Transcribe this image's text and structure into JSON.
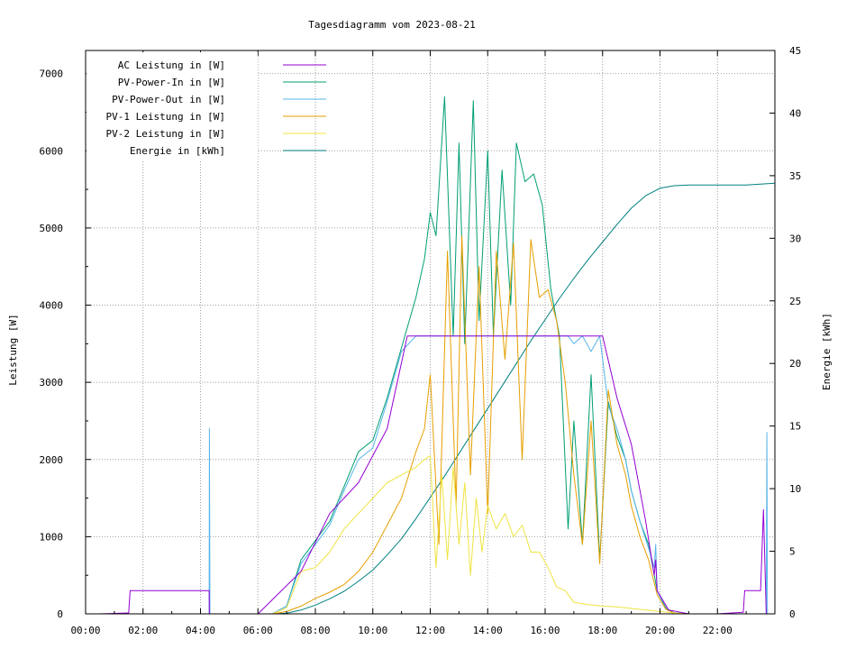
{
  "chart_data": {
    "type": "line",
    "title": "Tagesdiagramm vom 2023-08-21",
    "ylabel": "Leistung [W]",
    "y2label": "Energie [kWh]",
    "xticks": [
      "00:00",
      "02:00",
      "04:00",
      "06:00",
      "08:00",
      "10:00",
      "12:00",
      "14:00",
      "16:00",
      "18:00",
      "20:00",
      "22:00"
    ],
    "yticks": [
      "0",
      "1000",
      "2000",
      "3000",
      "4000",
      "5000",
      "6000",
      "7000"
    ],
    "y2ticks": [
      "0",
      "5",
      "10",
      "15",
      "20",
      "25",
      "30",
      "35",
      "40",
      "45"
    ],
    "xlim": [
      0,
      24
    ],
    "ylim": [
      0,
      7300
    ],
    "y2lim": [
      0,
      45
    ],
    "grid": true,
    "legend_position": "top-left",
    "series": [
      {
        "name": "AC Leistung in [W]",
        "axis": "y1",
        "color": "#9400d3",
        "x": [
          0,
          0.5,
          1.4,
          1.5,
          1.55,
          4.3,
          4.31,
          4.4,
          6.0,
          7.5,
          8.5,
          9.5,
          10.5,
          11.2,
          11.5,
          12.5,
          13.5,
          14.5,
          15.5,
          16.5,
          17.0,
          17.5,
          18.0,
          18.5,
          19.0,
          19.5,
          19.8,
          19.85,
          19.9,
          20.3,
          21.0,
          21.5,
          22.0,
          22.9,
          22.95,
          23.5,
          23.6,
          23.7,
          23.75,
          24.0
        ],
        "values": [
          0,
          0,
          10,
          10,
          300,
          300,
          0,
          0,
          0,
          550,
          1300,
          1700,
          2400,
          3600,
          3600,
          3600,
          3600,
          3600,
          3600,
          3600,
          3600,
          3600,
          3600,
          2800,
          2200,
          1200,
          500,
          700,
          300,
          50,
          0,
          0,
          0,
          20,
          300,
          300,
          1350,
          0,
          0,
          0
        ]
      },
      {
        "name": "PV-Power-In in [W]",
        "axis": "y1",
        "color": "#009e73",
        "x": [
          0,
          6.5,
          7.0,
          7.5,
          8.0,
          8.5,
          9.0,
          9.5,
          10.0,
          10.5,
          11.0,
          11.5,
          11.8,
          12.0,
          12.2,
          12.5,
          12.8,
          13.0,
          13.2,
          13.5,
          13.7,
          14.0,
          14.2,
          14.5,
          14.8,
          15.0,
          15.3,
          15.6,
          15.9,
          16.2,
          16.5,
          16.8,
          17.0,
          17.3,
          17.6,
          17.9,
          18.2,
          18.5,
          18.8,
          19.0,
          19.3,
          19.6,
          19.9,
          20.2,
          20.5,
          21.0,
          22.0,
          24.0
        ],
        "values": [
          0,
          0,
          100,
          700,
          950,
          1200,
          1650,
          2100,
          2250,
          2800,
          3450,
          4100,
          4600,
          5200,
          4900,
          6700,
          3600,
          6100,
          3500,
          6650,
          3800,
          6000,
          3600,
          5750,
          4000,
          6100,
          5600,
          5700,
          5300,
          4200,
          3600,
          1100,
          2500,
          900,
          3100,
          700,
          2750,
          2300,
          2000,
          1600,
          1200,
          900,
          300,
          80,
          10,
          0,
          0,
          0
        ]
      },
      {
        "name": "PV-Power-Out in [W]",
        "axis": "y1",
        "color": "#56b4e9",
        "x": [
          0,
          4.3,
          4.31,
          4.33,
          4.35,
          6.5,
          7.0,
          7.5,
          8.0,
          8.5,
          9.0,
          9.5,
          10.0,
          10.5,
          11.0,
          11.5,
          11.8,
          12.0,
          12.5,
          13.0,
          13.5,
          14.0,
          14.5,
          15.0,
          15.5,
          16.0,
          16.5,
          16.8,
          17.0,
          17.3,
          17.6,
          17.9,
          18.2,
          18.5,
          18.8,
          19.0,
          19.3,
          19.6,
          19.8,
          19.85,
          19.9,
          20.2,
          20.5,
          21.0,
          22.0,
          23.7,
          23.72,
          23.74,
          23.76,
          24.0
        ],
        "values": [
          0,
          0,
          2400,
          0,
          0,
          0,
          100,
          650,
          900,
          1150,
          1600,
          2000,
          2150,
          2750,
          3400,
          3600,
          3600,
          3600,
          3600,
          3600,
          3600,
          3600,
          3600,
          3600,
          3600,
          3600,
          3600,
          3600,
          3500,
          3600,
          3400,
          3600,
          2700,
          2400,
          2000,
          1600,
          1200,
          850,
          600,
          900,
          300,
          60,
          10,
          0,
          0,
          0,
          2350,
          0,
          0,
          0
        ]
      },
      {
        "name": "PV-1 Leistung in [W]",
        "axis": "y1",
        "color": "#e69f00",
        "x": [
          0,
          6.5,
          7.0,
          7.5,
          8.0,
          8.5,
          9.0,
          9.5,
          10.0,
          10.5,
          11.0,
          11.5,
          11.8,
          12.0,
          12.3,
          12.6,
          12.9,
          13.1,
          13.4,
          13.7,
          14.0,
          14.3,
          14.6,
          14.9,
          15.2,
          15.5,
          15.8,
          16.1,
          16.4,
          16.7,
          17.0,
          17.3,
          17.6,
          17.9,
          18.2,
          18.5,
          18.8,
          19.0,
          19.3,
          19.6,
          19.9,
          20.2,
          20.5,
          21.0,
          22.0,
          24.0
        ],
        "values": [
          0,
          0,
          30,
          100,
          200,
          280,
          380,
          550,
          800,
          1150,
          1500,
          2100,
          2400,
          3100,
          900,
          4700,
          1400,
          4900,
          1800,
          4500,
          1300,
          4700,
          3300,
          4800,
          2000,
          4850,
          4100,
          4200,
          3800,
          3000,
          1800,
          900,
          2500,
          650,
          2900,
          2200,
          1800,
          1400,
          1000,
          700,
          250,
          60,
          10,
          0,
          0,
          0
        ]
      },
      {
        "name": "PV-2 Leistung in [W]",
        "axis": "y1",
        "color": "#f0e442",
        "x": [
          0,
          6.5,
          7.0,
          7.5,
          8.0,
          8.5,
          9.0,
          9.5,
          10.0,
          10.5,
          11.0,
          11.5,
          11.8,
          12.0,
          12.2,
          12.4,
          12.6,
          12.8,
          13.0,
          13.2,
          13.4,
          13.6,
          13.8,
          14.0,
          14.3,
          14.6,
          14.9,
          15.2,
          15.5,
          15.8,
          16.1,
          16.4,
          16.7,
          17.0,
          17.5,
          18.0,
          18.5,
          19.0,
          19.5,
          20.0,
          20.5,
          21.0,
          22.0,
          24.0
        ],
        "values": [
          0,
          0,
          80,
          550,
          600,
          800,
          1100,
          1300,
          1500,
          1700,
          1800,
          1900,
          2000,
          2050,
          600,
          1800,
          700,
          1900,
          900,
          1700,
          500,
          1500,
          800,
          1400,
          1100,
          1300,
          1000,
          1150,
          800,
          800,
          600,
          350,
          300,
          150,
          120,
          100,
          90,
          70,
          50,
          30,
          10,
          0,
          0,
          0
        ]
      },
      {
        "name": "Energie in [kWh]",
        "axis": "y2",
        "color": "#008080",
        "x": [
          0,
          6.5,
          7.0,
          7.5,
          8.0,
          8.5,
          9.0,
          9.5,
          10.0,
          10.5,
          11.0,
          11.5,
          12.0,
          12.5,
          13.0,
          13.5,
          14.0,
          14.5,
          15.0,
          15.5,
          16.0,
          16.5,
          17.0,
          17.5,
          18.0,
          18.5,
          19.0,
          19.5,
          20.0,
          20.5,
          21.0,
          22.0,
          23.0,
          24.0
        ],
        "values": [
          0,
          0,
          0.05,
          0.3,
          0.7,
          1.2,
          1.8,
          2.6,
          3.5,
          4.7,
          6.0,
          7.6,
          9.3,
          11.0,
          12.8,
          14.6,
          16.4,
          18.2,
          20.0,
          21.8,
          23.5,
          25.2,
          26.8,
          28.3,
          29.7,
          31.1,
          32.4,
          33.4,
          34.0,
          34.2,
          34.25,
          34.25,
          34.25,
          34.4
        ]
      }
    ]
  }
}
